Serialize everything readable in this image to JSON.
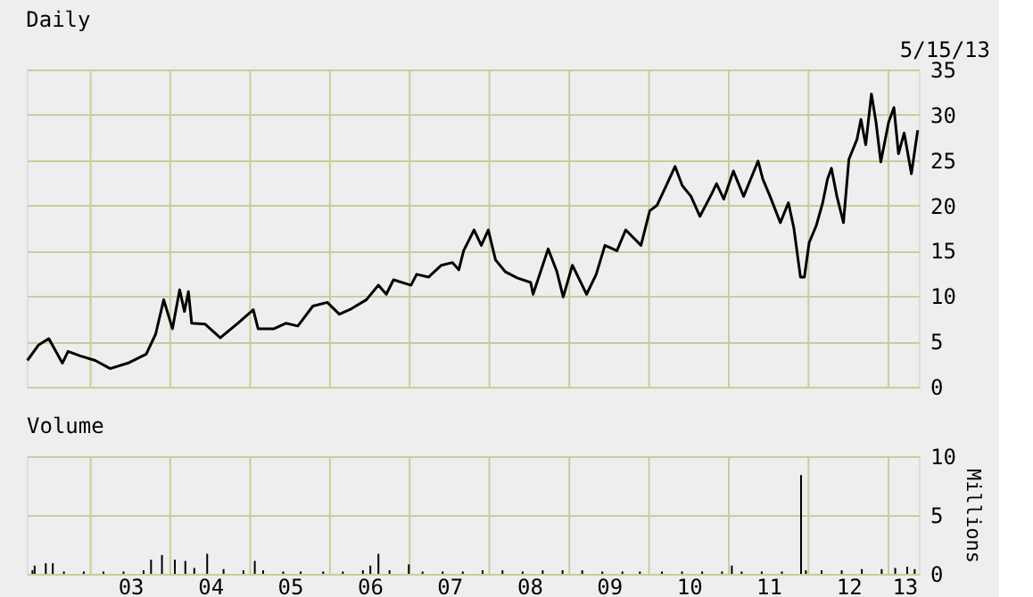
{
  "chart_data": [
    {
      "type": "line",
      "title": "Daily",
      "annotations": [
        "5/15/13"
      ],
      "grid": true,
      "tick_labels": "y",
      "marker": "none",
      "line_style": "solid",
      "xlim": [
        "2002-03-15",
        "2013-05-20"
      ],
      "xticks": [
        {
          "value": "2003-01-01",
          "label": null
        },
        {
          "value": "2004-01-01",
          "label": null
        },
        {
          "value": "2005-01-01",
          "label": null
        },
        {
          "value": "2006-01-01",
          "label": null
        },
        {
          "value": "2007-01-01",
          "label": null
        },
        {
          "value": "2008-01-01",
          "label": null
        },
        {
          "value": "2009-01-01",
          "label": null
        },
        {
          "value": "2010-01-01",
          "label": null
        },
        {
          "value": "2011-01-01",
          "label": null
        },
        {
          "value": "2012-01-01",
          "label": null
        },
        {
          "value": "2013-01-01",
          "label": null
        }
      ],
      "ylim": [
        0,
        35
      ],
      "yticks": [
        0,
        5,
        10,
        15,
        20,
        25,
        30,
        35
      ],
      "x": [
        "2002-03-18",
        "2002-05-08",
        "2002-06-24",
        "2002-08-25",
        "2002-09-20",
        "2002-11-14",
        "2003-01-22",
        "2003-04-01",
        "2003-06-21",
        "2003-09-13",
        "2003-10-26",
        "2003-12-02",
        "2004-01-11",
        "2004-02-13",
        "2004-03-06",
        "2004-03-24",
        "2004-04-08",
        "2004-06-09",
        "2004-08-17",
        "2004-11-05",
        "2005-01-15",
        "2005-02-06",
        "2005-04-20",
        "2005-06-13",
        "2005-08-07",
        "2005-10-15",
        "2005-12-20",
        "2006-02-13",
        "2006-04-09",
        "2006-06-17",
        "2006-08-11",
        "2006-09-16",
        "2006-10-19",
        "2007-01-07",
        "2007-02-02",
        "2007-03-29",
        "2007-05-26",
        "2007-07-16",
        "2007-08-14",
        "2007-09-05",
        "2007-10-23",
        "2007-11-25",
        "2007-12-27",
        "2008-01-29",
        "2008-03-13",
        "2008-05-07",
        "2008-07-08",
        "2008-07-19",
        "2008-09-26",
        "2008-11-05",
        "2008-12-04",
        "2009-01-15",
        "2009-03-21",
        "2009-05-04",
        "2009-06-13",
        "2009-08-07",
        "2009-09-16",
        "2009-11-25",
        "2010-01-04",
        "2010-02-06",
        "2010-03-21",
        "2010-04-30",
        "2010-06-02",
        "2010-07-12",
        "2010-08-22",
        "2010-10-15",
        "2010-11-06",
        "2010-12-09",
        "2011-01-22",
        "2011-03-10",
        "2011-05-15",
        "2011-06-06",
        "2011-07-09",
        "2011-08-25",
        "2011-10-01",
        "2011-10-26",
        "2011-11-25",
        "2011-12-13",
        "2012-01-04",
        "2012-02-06",
        "2012-03-06",
        "2012-03-28",
        "2012-04-15",
        "2012-05-10",
        "2012-06-09",
        "2012-07-04",
        "2012-08-10",
        "2012-08-28",
        "2012-09-19",
        "2012-10-15",
        "2012-11-05",
        "2012-11-27",
        "2013-01-02",
        "2013-01-26",
        "2013-02-16",
        "2013-03-14",
        "2013-04-16",
        "2013-05-15"
      ],
      "series": [
        {
          "color": "#000000",
          "values": [
            2.9,
            4.6,
            5.3,
            2.6,
            3.9,
            3.4,
            2.9,
            2.0,
            2.6,
            3.6,
            5.8,
            9.6,
            6.4,
            10.7,
            8.3,
            10.5,
            7.0,
            6.9,
            5.4,
            7.0,
            8.5,
            6.4,
            6.4,
            7.0,
            6.7,
            8.9,
            9.3,
            8.0,
            8.6,
            9.6,
            11.2,
            10.2,
            11.8,
            11.2,
            12.4,
            12.1,
            13.4,
            13.7,
            12.9,
            15.0,
            17.3,
            15.6,
            17.3,
            14.0,
            12.7,
            12.0,
            11.5,
            10.2,
            15.2,
            12.7,
            9.9,
            13.4,
            10.2,
            12.4,
            15.6,
            15.0,
            17.3,
            15.6,
            19.4,
            20.0,
            22.2,
            24.3,
            22.2,
            21.0,
            18.8,
            21.3,
            22.4,
            20.7,
            23.8,
            21.0,
            24.9,
            22.9,
            21.0,
            18.1,
            20.3,
            17.5,
            12.1,
            12.1,
            15.9,
            17.8,
            20.3,
            22.9,
            24.1,
            21.0,
            18.1,
            25.1,
            27.3,
            29.5,
            26.7,
            32.3,
            29.2,
            24.8,
            29.2,
            30.8,
            25.7,
            28.0,
            23.5,
            28.3
          ]
        }
      ]
    },
    {
      "type": "bar",
      "title": "Volume",
      "ylabel": "Millions",
      "grid": true,
      "xlim": [
        "2002-03-15",
        "2013-05-20"
      ],
      "xticks": [
        {
          "value": "2003-01-01",
          "label": null
        },
        {
          "value": "2003-07-02",
          "label": "03"
        },
        {
          "value": "2004-01-01",
          "label": null
        },
        {
          "value": "2004-07-02",
          "label": "04"
        },
        {
          "value": "2005-01-01",
          "label": null
        },
        {
          "value": "2005-07-02",
          "label": "05"
        },
        {
          "value": "2006-01-01",
          "label": null
        },
        {
          "value": "2006-07-02",
          "label": "06"
        },
        {
          "value": "2007-01-01",
          "label": null
        },
        {
          "value": "2007-07-02",
          "label": "07"
        },
        {
          "value": "2008-01-01",
          "label": null
        },
        {
          "value": "2008-07-02",
          "label": "08"
        },
        {
          "value": "2009-01-01",
          "label": null
        },
        {
          "value": "2009-07-02",
          "label": "09"
        },
        {
          "value": "2010-01-01",
          "label": null
        },
        {
          "value": "2010-07-02",
          "label": "10"
        },
        {
          "value": "2011-01-01",
          "label": null
        },
        {
          "value": "2011-07-02",
          "label": "11"
        },
        {
          "value": "2012-01-01",
          "label": null
        },
        {
          "value": "2012-07-02",
          "label": "12"
        },
        {
          "value": "2013-01-01",
          "label": null
        },
        {
          "value": "2013-03-15",
          "label": "13"
        }
      ],
      "ylim": [
        0,
        10
      ],
      "yticks": [
        0,
        5,
        10
      ],
      "x": [
        "2002-04-10",
        "2002-04-20",
        "2002-06-10",
        "2002-07-12",
        "2002-09-01",
        "2002-12-01",
        "2003-03-01",
        "2003-06-01",
        "2003-09-01",
        "2003-10-05",
        "2003-11-24",
        "2004-01-22",
        "2004-03-10",
        "2004-04-20",
        "2004-06-18",
        "2004-09-01",
        "2004-12-01",
        "2005-01-22",
        "2005-03-01",
        "2005-06-01",
        "2005-08-20",
        "2005-12-01",
        "2006-03-01",
        "2006-06-01",
        "2006-07-05",
        "2006-08-11",
        "2006-10-01",
        "2006-12-28",
        "2007-03-01",
        "2007-06-01",
        "2007-09-01",
        "2007-12-01",
        "2008-03-01",
        "2008-06-01",
        "2008-09-01",
        "2008-12-01",
        "2009-03-01",
        "2009-06-01",
        "2009-09-01",
        "2009-11-20",
        "2010-03-01",
        "2010-06-01",
        "2010-09-01",
        "2010-12-01",
        "2011-01-15",
        "2011-03-01",
        "2011-06-01",
        "2011-09-01",
        "2011-11-28",
        "2011-12-20",
        "2012-03-01",
        "2012-06-01",
        "2012-09-01",
        "2012-12-01",
        "2013-02-01",
        "2013-03-28",
        "2013-05-01"
      ],
      "series": [
        {
          "color": "#000000",
          "values": [
            0.3,
            0.7,
            0.9,
            0.9,
            0.2,
            0.2,
            0.2,
            0.2,
            0.3,
            1.2,
            1.6,
            1.2,
            1.1,
            0.5,
            1.7,
            0.4,
            0.3,
            1.1,
            0.3,
            0.2,
            0.2,
            0.2,
            0.2,
            0.3,
            0.7,
            1.7,
            0.3,
            0.8,
            0.2,
            0.2,
            0.2,
            0.3,
            0.3,
            0.2,
            0.3,
            0.3,
            0.3,
            0.2,
            0.2,
            0.2,
            0.2,
            0.2,
            0.2,
            0.2,
            0.7,
            0.2,
            0.2,
            0.2,
            8.4,
            0.3,
            0.3,
            0.3,
            0.4,
            0.4,
            0.5,
            0.6,
            0.4
          ]
        }
      ]
    }
  ]
}
